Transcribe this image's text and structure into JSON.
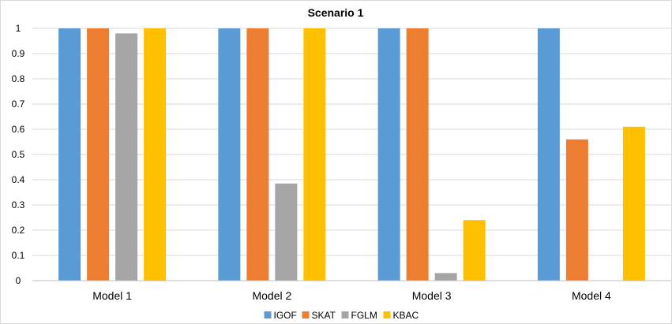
{
  "chart_data": {
    "type": "bar",
    "title": "Scenario 1",
    "xlabel": "",
    "ylabel": "",
    "categories": [
      "Model 1",
      "Model 2",
      "Model 3",
      "Model 4"
    ],
    "series": [
      {
        "name": "IGOF",
        "color": "#5b9bd5",
        "values": [
          1,
          1,
          1,
          1
        ]
      },
      {
        "name": "SKAT",
        "color": "#ed7d31",
        "values": [
          1,
          1,
          1,
          0.56
        ]
      },
      {
        "name": "FGLM",
        "color": "#a5a5a5",
        "values": [
          0.98,
          0.385,
          0.03,
          0
        ]
      },
      {
        "name": "KBAC",
        "color": "#ffc000",
        "values": [
          1,
          1,
          0.24,
          0.61
        ]
      }
    ],
    "ylim": [
      0,
      1
    ],
    "yticks": [
      "0",
      "0.1",
      "0.2",
      "0.3",
      "0.4",
      "0.5",
      "0.6",
      "0.7",
      "0.8",
      "0.9",
      "1"
    ],
    "grid": true,
    "legend_position": "bottom"
  }
}
